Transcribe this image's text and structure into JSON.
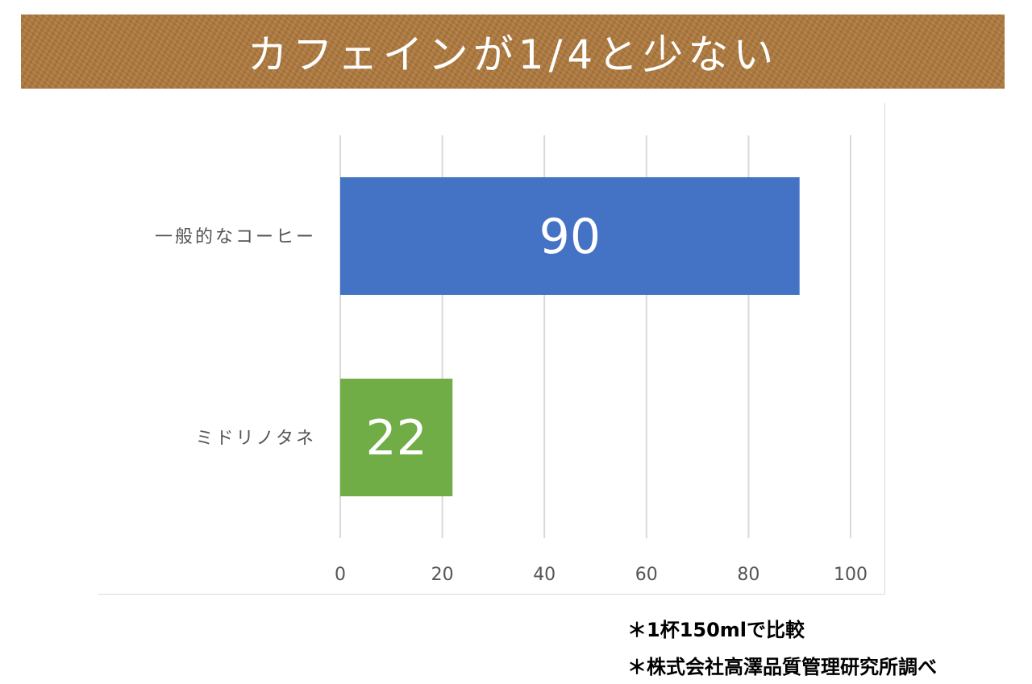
{
  "banner": {
    "title": "カフェインが1/4と少ない"
  },
  "colors": {
    "banner": "#b07a3e",
    "bar_coffee": "#4472c4",
    "bar_midori": "#70ad47",
    "grid": "#d9d9d9"
  },
  "chart_data": {
    "type": "bar",
    "orientation": "horizontal",
    "categories": [
      "一般的なコーヒー",
      "ミドリノタネ"
    ],
    "values": [
      90,
      22
    ],
    "data_labels": [
      "90",
      "22"
    ],
    "bar_colors": [
      "#4472c4",
      "#70ad47"
    ],
    "xlim": [
      0,
      100
    ],
    "xticks": [
      "0",
      "20",
      "40",
      "60",
      "80",
      "100"
    ],
    "grid": true,
    "legend": "none"
  },
  "notes": [
    "＊1杯150mlで比較",
    "＊株式会社高澤品質管理研究所調べ"
  ]
}
